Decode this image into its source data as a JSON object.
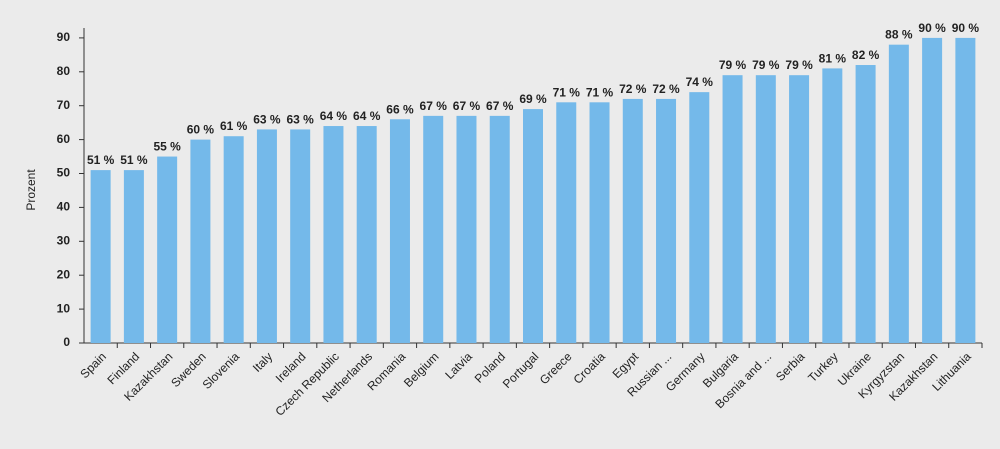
{
  "chart_data": {
    "type": "bar",
    "y_label": "Prozent",
    "categories": [
      "Spain",
      "Finland",
      "Kazakhstan",
      "Sweden",
      "Slovenia",
      "Italy",
      "Ireland",
      "Czech Republic",
      "Netherlands",
      "Romania",
      "Belgium",
      "Latvia",
      "Poland",
      "Portugal",
      "Greece",
      "Croatia",
      "Egypt",
      "Russian ...",
      "Germany",
      "Bulgaria",
      "Bosnia and ...",
      "Serbia",
      "Turkey",
      "Ukraine",
      "Kyrgyzstan",
      "Kazakhstan",
      "Lithuania"
    ],
    "values": [
      51,
      51,
      55,
      60,
      61,
      63,
      63,
      64,
      64,
      66,
      67,
      67,
      67,
      69,
      71,
      71,
      72,
      72,
      74,
      79,
      79,
      79,
      81,
      82,
      88,
      90,
      90
    ],
    "value_labels": [
      "51 %",
      "51 %",
      "55 %",
      "60 %",
      "61 %",
      "63 %",
      "63 %",
      "64 %",
      "64 %",
      "66 %",
      "67 %",
      "67 %",
      "67 %",
      "69 %",
      "71 %",
      "71 %",
      "72 %",
      "72 %",
      "74 %",
      "79 %",
      "79 %",
      "79 %",
      "81 %",
      "82 %",
      "88 %",
      "90 %",
      "90 %"
    ],
    "color": "#74b9ea",
    "ylim": [
      0,
      93
    ],
    "yticks": [
      0,
      10,
      20,
      30,
      40,
      50,
      60,
      70,
      80,
      90
    ],
    "grid": false
  }
}
